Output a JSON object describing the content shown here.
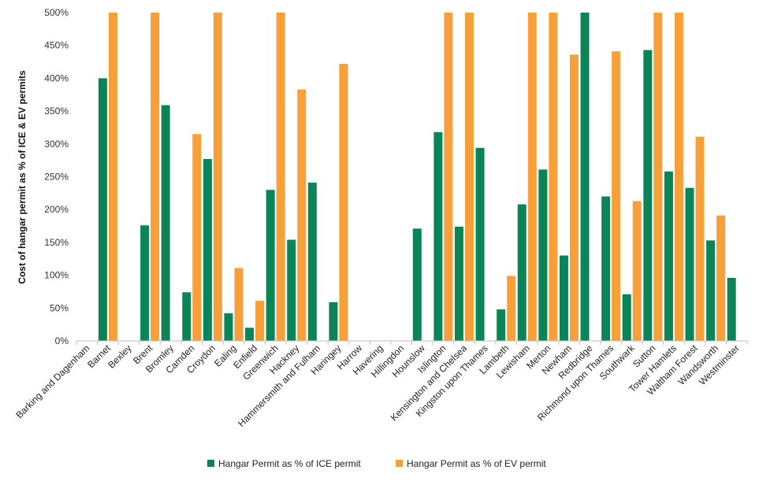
{
  "chart_data": {
    "type": "bar",
    "title": "",
    "xlabel": "",
    "ylabel": "Cost of hangar permit as % of ICE & EV permits",
    "ylim": [
      0,
      500
    ],
    "yticks": [
      "0%",
      "50%",
      "100%",
      "150%",
      "200%",
      "250%",
      "300%",
      "350%",
      "400%",
      "450%",
      "500%"
    ],
    "grid": false,
    "legend_position": "bottom",
    "categories": [
      "Barking and Dagenham",
      "Barnet",
      "Bexley",
      "Brent",
      "Bromley",
      "Camden",
      "Croydon",
      "Ealing",
      "Enfield",
      "Greenwich",
      "Hackney",
      "Hammersmith and Fulham",
      "Haringey",
      "Harrow",
      "Havering",
      "Hillingdon",
      "Hounslow",
      "Islington",
      "Kensington and Chelsea",
      "Kingston upon Thames",
      "Lambeth",
      "Lewisham",
      "Merton",
      "Newham",
      "Redbridge",
      "Richmond upon Thames",
      "Southwark",
      "Sutton",
      "Tower Hamlets",
      "Waltham Forest",
      "Wandsworth",
      "Westminster"
    ],
    "series": [
      {
        "name": "Hangar Permit as % of ICE permit",
        "color": "#0b8457",
        "values": [
          0,
          400,
          0,
          176,
          359,
          74,
          277,
          42,
          20,
          230,
          154,
          241,
          59,
          0,
          0,
          0,
          171,
          318,
          174,
          294,
          48,
          208,
          261,
          130,
          500,
          220,
          71,
          443,
          258,
          233,
          153,
          96
        ]
      },
      {
        "name": "Hangar Permit as % of EV permit",
        "color": "#f7a03a",
        "values": [
          0,
          500,
          0,
          500,
          0,
          315,
          500,
          111,
          61,
          500,
          383,
          0,
          422,
          0,
          0,
          0,
          0,
          500,
          500,
          0,
          99,
          500,
          500,
          436,
          0,
          441,
          213,
          500,
          500,
          311,
          191,
          0
        ]
      }
    ]
  }
}
